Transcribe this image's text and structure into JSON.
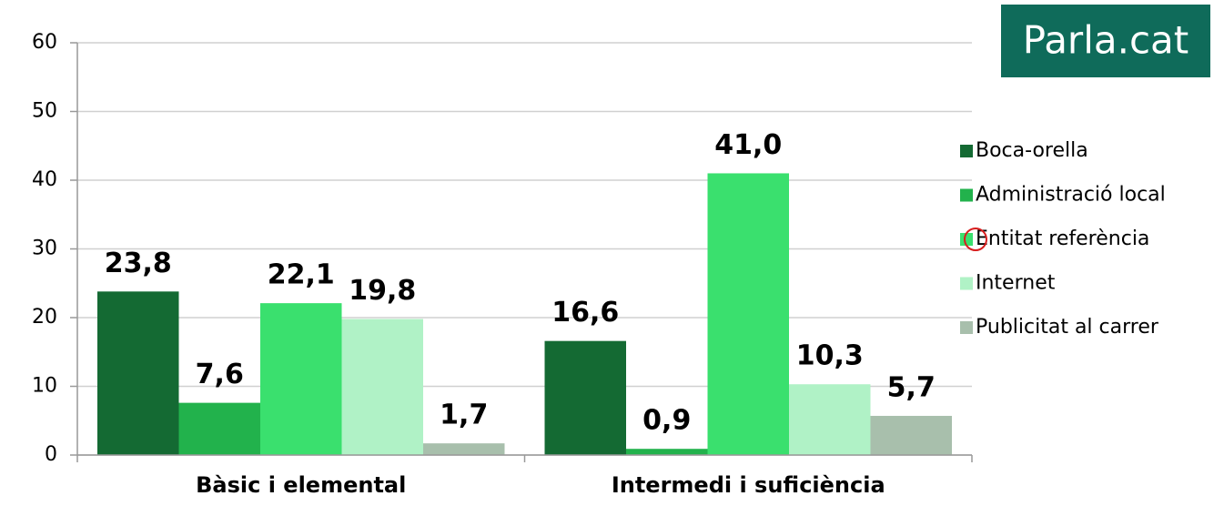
{
  "chart_data": {
    "type": "bar",
    "title": "Parla.cat",
    "categories": [
      "Bàsic i elemental",
      "Intermedi i suficiència"
    ],
    "series": [
      {
        "name": "Boca-orella",
        "color": "#146a33",
        "values": [
          23.8,
          16.6
        ],
        "value_labels": [
          "23,8",
          "16,6"
        ]
      },
      {
        "name": "Administració local",
        "color": "#22b24c",
        "values": [
          7.6,
          0.9
        ],
        "value_labels": [
          "7,6",
          "0,9"
        ]
      },
      {
        "name": "Entitat referència",
        "color": "#3ae06e",
        "values": [
          22.1,
          41.0
        ],
        "value_labels": [
          "22,1",
          "41,0"
        ]
      },
      {
        "name": "Internet",
        "color": "#b0f2c6",
        "values": [
          19.8,
          10.3
        ],
        "value_labels": [
          "19,8",
          "10,3"
        ]
      },
      {
        "name": "Publicitat al carrer",
        "color": "#a8bfac",
        "values": [
          1.7,
          5.7
        ],
        "value_labels": [
          "1,7",
          "5,7"
        ]
      }
    ],
    "ylim": [
      0,
      60
    ],
    "yticks": [
      0,
      10,
      20,
      30,
      40,
      50,
      60
    ],
    "grid": true,
    "legend": "right"
  }
}
